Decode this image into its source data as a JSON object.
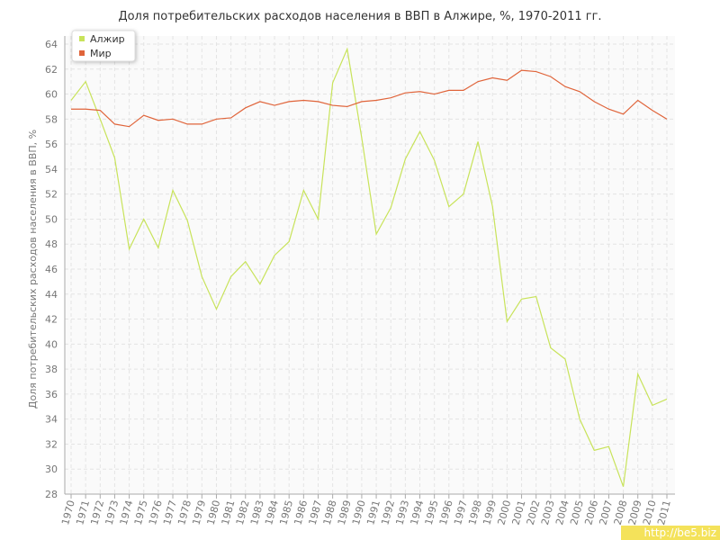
{
  "chart_data": {
    "type": "line",
    "title": "Доля потребительских расходов населения в ВВП в Алжире, %, 1970-2011 гг.",
    "y_label": "Доля потребительских расходов населения в ВВП, %",
    "watermark": "http://be5.biz",
    "categories": [
      "1970",
      "1971",
      "1972",
      "1973",
      "1974",
      "1975",
      "1976",
      "1977",
      "1978",
      "1979",
      "1980",
      "1981",
      "1982",
      "1983",
      "1984",
      "1985",
      "1986",
      "1987",
      "1988",
      "1989",
      "1990",
      "1991",
      "1992",
      "1993",
      "1994",
      "1995",
      "1996",
      "1997",
      "1998",
      "1999",
      "2000",
      "2001",
      "2002",
      "2003",
      "2004",
      "2005",
      "2006",
      "2007",
      "2008",
      "2009",
      "2010",
      "2011"
    ],
    "series": [
      {
        "name": "Алжир",
        "color": "#c8e35a",
        "values": [
          59.5,
          61.0,
          58.0,
          54.9,
          47.6,
          50.0,
          47.7,
          52.3,
          49.9,
          45.4,
          42.8,
          45.4,
          46.6,
          44.8,
          47.1,
          48.2,
          52.3,
          50.0,
          60.9,
          63.6,
          56.5,
          48.8,
          50.9,
          54.8,
          57.0,
          54.7,
          51.0,
          52.0,
          56.2,
          51.0,
          41.8,
          43.6,
          43.8,
          39.7,
          38.8,
          34.0,
          31.5,
          31.8,
          28.6,
          37.6,
          35.1,
          35.6
        ]
      },
      {
        "name": "Мир",
        "color": "#e0643a",
        "values": [
          58.8,
          58.8,
          58.7,
          57.6,
          57.4,
          58.3,
          57.9,
          58.0,
          57.6,
          57.6,
          58.0,
          58.1,
          58.9,
          59.4,
          59.1,
          59.4,
          59.5,
          59.4,
          59.1,
          59.0,
          59.4,
          59.5,
          59.7,
          60.1,
          60.2,
          60.0,
          60.3,
          60.3,
          61.0,
          61.3,
          61.1,
          61.9,
          61.8,
          61.4,
          60.6,
          60.2,
          59.4,
          58.8,
          58.4,
          59.5,
          58.7,
          58.0
        ]
      }
    ],
    "ylim": [
      28,
      64
    ],
    "yticks": [
      28,
      30,
      32,
      34,
      36,
      38,
      40,
      42,
      44,
      46,
      48,
      50,
      52,
      54,
      56,
      58,
      60,
      62,
      64
    ],
    "grid": true,
    "legend": "top-left"
  }
}
